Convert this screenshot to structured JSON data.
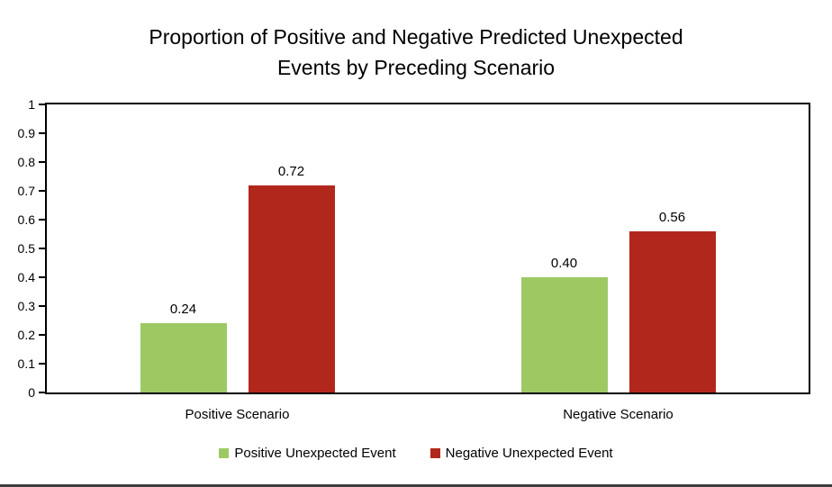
{
  "chart_data": {
    "type": "bar",
    "title": "Proportion of Positive and Negative Predicted Unexpected Events by Preceding Scenario",
    "title_lines": [
      "Proportion of Positive and Negative Predicted Unexpected",
      "Events by Preceding Scenario"
    ],
    "categories": [
      "Positive Scenario",
      "Negative Scenario"
    ],
    "series": [
      {
        "name": "Positive Unexpected Event",
        "color": "#9DC963",
        "values": [
          0.24,
          0.4
        ]
      },
      {
        "name": "Negative Unexpected Event",
        "color": "#B2271C",
        "values": [
          0.72,
          0.56
        ]
      }
    ],
    "value_label_format": "0.00",
    "xlabel": "",
    "ylabel": "",
    "y_axis": {
      "min": 0,
      "max": 1,
      "step": 0.1,
      "tick_labels": [
        "0",
        "0.1",
        "0.2",
        "0.3",
        "0.4",
        "0.5",
        "0.6",
        "0.7",
        "0.8",
        "0.9",
        "1"
      ]
    },
    "grid": false,
    "legend": {
      "position": "bottom",
      "items": [
        "Positive Unexpected Event",
        "Negative Unexpected Event"
      ]
    },
    "plot_border_color": "#000000",
    "page_bottom_edge_color": "#3d3d3d"
  }
}
